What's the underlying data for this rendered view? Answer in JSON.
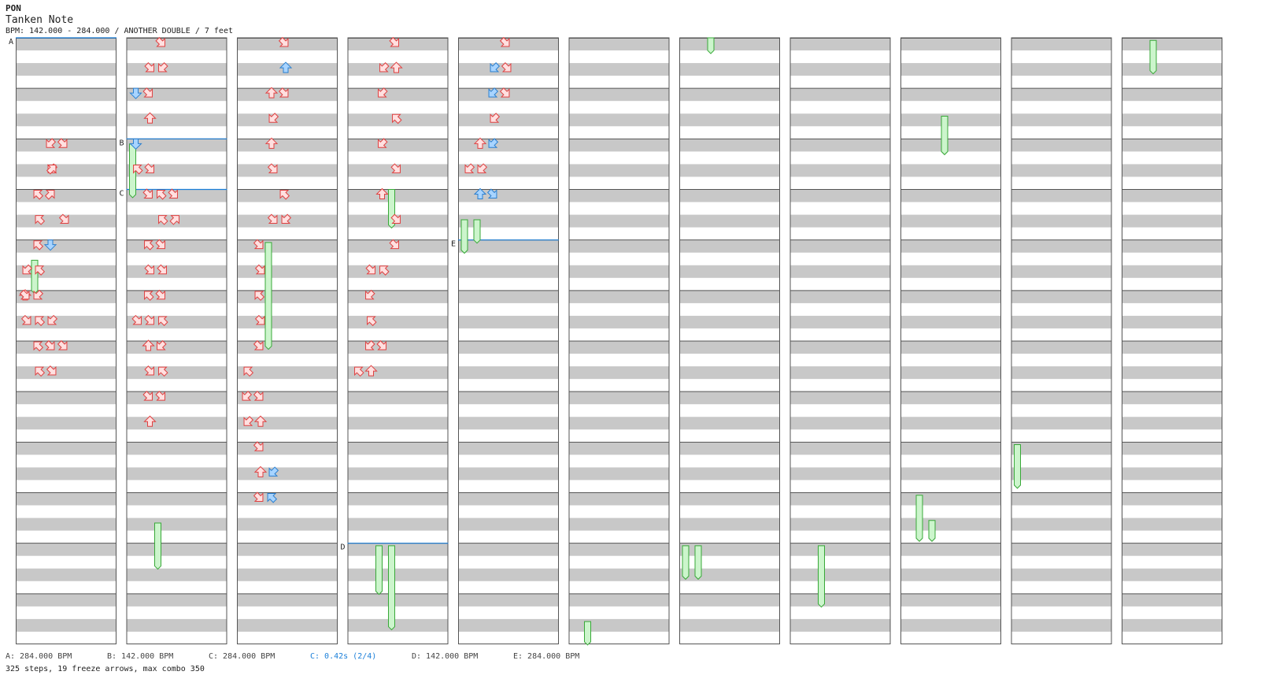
{
  "header": {
    "artist": "PON",
    "title": "Tanken Note",
    "info": "BPM: 142.000 - 284.000 / ANOTHER DOUBLE / 7 feet"
  },
  "footer": {
    "legend": [
      {
        "text": "A: 284.000 BPM",
        "highlight": false
      },
      {
        "text": "B: 142.000 BPM",
        "highlight": false
      },
      {
        "text": "C: 284.000 BPM",
        "highlight": false
      },
      {
        "text": "C: 0.42s (2/4)",
        "highlight": true
      },
      {
        "text": "D: 142.000 BPM",
        "highlight": false
      },
      {
        "text": "E: 284.000 BPM",
        "highlight": false
      }
    ],
    "stats": "325 steps, 19 freeze arrows, max combo 350"
  },
  "colors": {
    "stripe": "#c8c8c8",
    "arrow_red_fill": "#ffe0e0",
    "arrow_red_stroke": "#e04040",
    "arrow_blue_fill": "#a8d4ff",
    "arrow_blue_stroke": "#2a7fd0",
    "freeze_fill": "#ccf5cc",
    "freeze_stroke": "#38a838",
    "marker_line": "#1a7fd9"
  },
  "markers": [
    {
      "label": "A",
      "column": 0,
      "measure": 0
    },
    {
      "label": "B",
      "column": 1,
      "measure": 2
    },
    {
      "label": "C",
      "column": 1,
      "measure": 3
    },
    {
      "label": "D",
      "column": 3,
      "measure": 10
    },
    {
      "label": "E",
      "column": 4,
      "measure": 4
    }
  ],
  "chart": {
    "columns": 11,
    "measures_per_column": 12,
    "lanes": 8,
    "arrows": [
      [
        0,
        4,
        2,
        "dl",
        "red"
      ],
      [
        0,
        4,
        3,
        "dr",
        "red"
      ],
      [
        0,
        5,
        2,
        "dl",
        "red"
      ],
      [
        0,
        5,
        2,
        "ur",
        "red"
      ],
      [
        0,
        6,
        1,
        "ul",
        "red"
      ],
      [
        0,
        6,
        2,
        "ur",
        "red"
      ],
      [
        0,
        7,
        1,
        "ul",
        "red"
      ],
      [
        0,
        7,
        3,
        "dr",
        "red"
      ],
      [
        0,
        8,
        1,
        "ul",
        "red"
      ],
      [
        0,
        8,
        2,
        "d",
        "blue"
      ],
      [
        0,
        9,
        0,
        "dl",
        "red"
      ],
      [
        0,
        9,
        1,
        "ul",
        "red"
      ],
      [
        0,
        10,
        0,
        "u",
        "red"
      ],
      [
        0,
        10,
        1,
        "dl",
        "red"
      ],
      [
        0,
        10,
        0,
        "dr",
        "red"
      ],
      [
        0,
        11,
        0,
        "dr",
        "red"
      ],
      [
        0,
        11,
        1,
        "ul",
        "red"
      ],
      [
        0,
        11,
        2,
        "dl",
        "red"
      ],
      [
        0,
        12,
        1,
        "ul",
        "red"
      ],
      [
        0,
        12,
        2,
        "dr",
        "red"
      ],
      [
        0,
        12,
        3,
        "dr",
        "red"
      ],
      [
        0,
        13,
        2,
        "dr",
        "red"
      ],
      [
        0,
        13,
        1,
        "ul",
        "red"
      ],
      [
        1,
        0,
        2,
        "dr",
        "red"
      ],
      [
        1,
        1,
        1,
        "dr",
        "red"
      ],
      [
        1,
        1,
        2,
        "dl",
        "red"
      ],
      [
        1,
        2,
        0,
        "d",
        "blue"
      ],
      [
        1,
        2,
        1,
        "dr",
        "red"
      ],
      [
        1,
        3,
        1,
        "u",
        "red"
      ],
      [
        1,
        4,
        0,
        "d",
        "blue"
      ],
      [
        1,
        5,
        0,
        "ul",
        "red"
      ],
      [
        1,
        5,
        1,
        "dr",
        "red"
      ],
      [
        1,
        6,
        1,
        "dr",
        "red"
      ],
      [
        1,
        6,
        2,
        "ul",
        "red"
      ],
      [
        1,
        6,
        3,
        "dr",
        "red"
      ],
      [
        1,
        7,
        2,
        "ul",
        "red"
      ],
      [
        1,
        7,
        3,
        "ur",
        "red"
      ],
      [
        1,
        8,
        2,
        "dr",
        "red"
      ],
      [
        1,
        8,
        1,
        "ul",
        "red"
      ],
      [
        1,
        9,
        2,
        "dr",
        "red"
      ],
      [
        1,
        9,
        1,
        "dr",
        "red"
      ],
      [
        1,
        10,
        1,
        "ul",
        "red"
      ],
      [
        1,
        10,
        2,
        "dr",
        "red"
      ],
      [
        1,
        11,
        2,
        "ul",
        "red"
      ],
      [
        1,
        11,
        0,
        "dr",
        "red"
      ],
      [
        1,
        11,
        1,
        "dr",
        "red"
      ],
      [
        1,
        12,
        1,
        "u",
        "red"
      ],
      [
        1,
        12,
        2,
        "dl",
        "red"
      ],
      [
        1,
        13,
        1,
        "dr",
        "red"
      ],
      [
        1,
        13,
        2,
        "ul",
        "red"
      ],
      [
        1,
        14,
        1,
        "dr",
        "red"
      ],
      [
        1,
        14,
        2,
        "dr",
        "red"
      ],
      [
        1,
        15,
        1,
        "u",
        "red"
      ],
      [
        2,
        0,
        3,
        "dr",
        "red"
      ],
      [
        2,
        1,
        3,
        "u",
        "blue"
      ],
      [
        2,
        2,
        3,
        "dr",
        "red"
      ],
      [
        2,
        2,
        2,
        "u",
        "red"
      ],
      [
        2,
        3,
        2,
        "dl",
        "red"
      ],
      [
        2,
        4,
        2,
        "u",
        "red"
      ],
      [
        2,
        5,
        2,
        "dr",
        "red"
      ],
      [
        2,
        6,
        3,
        "ul",
        "red"
      ],
      [
        2,
        7,
        2,
        "dr",
        "red"
      ],
      [
        2,
        7,
        3,
        "dl",
        "red"
      ],
      [
        2,
        8,
        1,
        "dr",
        "red"
      ],
      [
        2,
        9,
        1,
        "dr",
        "red"
      ],
      [
        2,
        10,
        1,
        "ul",
        "red"
      ],
      [
        2,
        11,
        1,
        "dr",
        "red"
      ],
      [
        2,
        12,
        1,
        "dr",
        "red"
      ],
      [
        2,
        13,
        0,
        "ul",
        "red"
      ],
      [
        2,
        14,
        1,
        "dr",
        "red"
      ],
      [
        2,
        14,
        0,
        "dl",
        "red"
      ],
      [
        2,
        15,
        0,
        "dl",
        "red"
      ],
      [
        2,
        15,
        1,
        "u",
        "red"
      ],
      [
        2,
        16,
        1,
        "dr",
        "red"
      ],
      [
        2,
        17,
        1,
        "u",
        "red"
      ],
      [
        2,
        17,
        2,
        "dl",
        "blue"
      ],
      [
        2,
        18,
        1,
        "dr",
        "red"
      ],
      [
        2,
        18,
        2,
        "ul",
        "blue"
      ],
      [
        3,
        0,
        3,
        "dr",
        "red"
      ],
      [
        3,
        1,
        2,
        "dl",
        "red"
      ],
      [
        3,
        1,
        3,
        "u",
        "red"
      ],
      [
        3,
        2,
        2,
        "dl",
        "red"
      ],
      [
        3,
        3,
        3,
        "ul",
        "red"
      ],
      [
        3,
        4,
        2,
        "dl",
        "red"
      ],
      [
        3,
        5,
        3,
        "dr",
        "red"
      ],
      [
        3,
        6,
        2,
        "u",
        "red"
      ],
      [
        3,
        7,
        3,
        "dr",
        "red"
      ],
      [
        3,
        8,
        3,
        "dr",
        "red"
      ],
      [
        3,
        9,
        2,
        "ul",
        "red"
      ],
      [
        3,
        9,
        1,
        "dr",
        "red"
      ],
      [
        3,
        10,
        1,
        "dl",
        "red"
      ],
      [
        3,
        11,
        1,
        "ul",
        "red"
      ],
      [
        3,
        12,
        1,
        "dl",
        "red"
      ],
      [
        3,
        12,
        2,
        "dr",
        "red"
      ],
      [
        3,
        13,
        1,
        "u",
        "red"
      ],
      [
        3,
        13,
        0,
        "ul",
        "red"
      ],
      [
        4,
        0,
        3,
        "dr",
        "red"
      ],
      [
        4,
        1,
        2,
        "dl",
        "blue"
      ],
      [
        4,
        1,
        3,
        "dr",
        "red"
      ],
      [
        4,
        2,
        2,
        "dl",
        "blue"
      ],
      [
        4,
        2,
        3,
        "dr",
        "red"
      ],
      [
        4,
        3,
        2,
        "dl",
        "red"
      ],
      [
        4,
        4,
        1,
        "u",
        "red"
      ],
      [
        4,
        4,
        2,
        "dl",
        "blue"
      ],
      [
        4,
        5,
        0,
        "dl",
        "red"
      ],
      [
        4,
        5,
        1,
        "dl",
        "red"
      ],
      [
        4,
        6,
        1,
        "u",
        "blue"
      ],
      [
        4,
        6,
        2,
        "dr",
        "blue"
      ]
    ],
    "freezes": [
      [
        0,
        4.4,
        0.6,
        1,
        "red"
      ],
      [
        1,
        2.1,
        1,
        0,
        "blue"
      ],
      [
        1,
        9.6,
        0.85,
        2,
        "red"
      ],
      [
        2,
        4.05,
        2.05,
        2,
        "red"
      ],
      [
        3,
        3.0,
        0.7,
        3,
        "red"
      ],
      [
        3,
        10.05,
        0.9,
        2,
        "red"
      ],
      [
        3,
        10.05,
        1.6,
        3,
        "red"
      ],
      [
        4,
        3.6,
        0.6,
        0,
        "red"
      ],
      [
        4,
        3.6,
        0.4,
        1,
        "red"
      ],
      [
        5,
        11.55,
        0.4,
        1,
        "red"
      ],
      [
        6,
        0,
        0.25,
        2,
        "red"
      ],
      [
        6,
        10.05,
        0.6,
        0,
        "red"
      ],
      [
        6,
        10.05,
        0.6,
        1,
        "red"
      ],
      [
        7,
        10.05,
        1.15,
        2,
        "red"
      ],
      [
        8,
        1.55,
        0.7,
        3,
        "red"
      ],
      [
        8,
        9.05,
        0.85,
        1,
        "red"
      ],
      [
        8,
        9.55,
        0.35,
        2,
        "red"
      ],
      [
        9,
        8.05,
        0.8,
        0,
        "blue"
      ],
      [
        10,
        0.05,
        0.6,
        2,
        "red"
      ]
    ]
  }
}
